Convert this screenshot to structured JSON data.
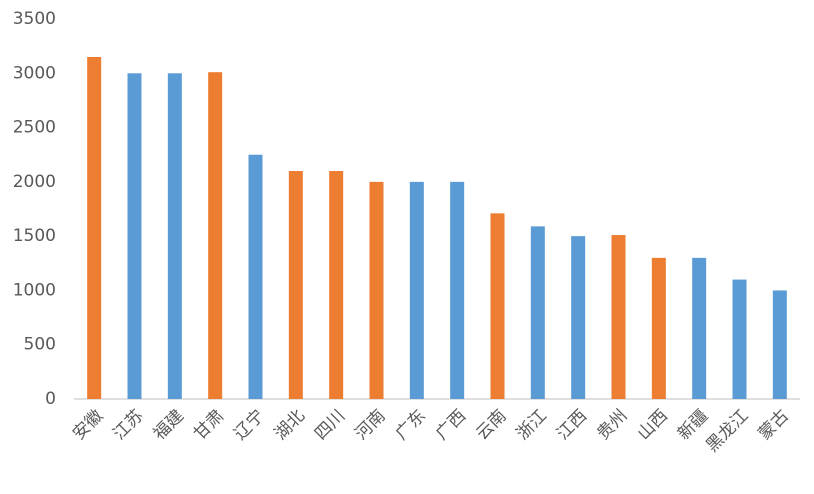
{
  "chart_data": {
    "type": "bar",
    "categories": [
      "安徽",
      "江苏",
      "福建",
      "甘肃",
      "辽宁",
      "湖北",
      "四川",
      "河南",
      "广东",
      "广西",
      "云南",
      "浙江",
      "江西",
      "贵州",
      "山西",
      "新疆",
      "黑龙江",
      "蒙古"
    ],
    "values": [
      3150,
      3000,
      3000,
      3010,
      2250,
      2100,
      2100,
      2000,
      2000,
      2000,
      1710,
      1590,
      1500,
      1510,
      1300,
      1300,
      1100,
      1000
    ],
    "colors": [
      "#ed7d31",
      "#5b9bd5",
      "#5b9bd5",
      "#ed7d31",
      "#5b9bd5",
      "#ed7d31",
      "#ed7d31",
      "#ed7d31",
      "#5b9bd5",
      "#5b9bd5",
      "#ed7d31",
      "#5b9bd5",
      "#5b9bd5",
      "#ed7d31",
      "#ed7d31",
      "#5b9bd5",
      "#5b9bd5",
      "#5b9bd5"
    ],
    "ylim": [
      0,
      3500
    ],
    "yticks": [
      0,
      500,
      1000,
      1500,
      2000,
      2500,
      3000,
      3500
    ],
    "grid": false
  }
}
